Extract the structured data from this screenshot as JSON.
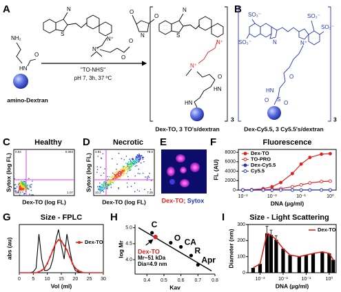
{
  "A": {
    "letter": "A",
    "reagent": "\"TO-NHS\"",
    "conditions": "pH 7, 3h, 37 ºC",
    "start": "amino-Dextran",
    "product": "Dex-TO, 3 TO's/dextran",
    "repeat": "3",
    "atoms": [
      "S",
      "N",
      "N⁺",
      "N⁺",
      "O",
      "O",
      "N",
      "O",
      "O",
      "NH₂",
      "HN",
      "O",
      "S",
      "N",
      "N⁺",
      "N⁺",
      "O",
      "HN",
      "HN"
    ]
  },
  "B": {
    "letter": "B",
    "product": "Dex-Cy5.5, 3 Cy5.5's/dextran",
    "repeat": "3",
    "atoms": [
      "SO₃⁻",
      "SO₃⁻",
      "SO₃⁻",
      "SO₃⁻",
      "N",
      "N⁺",
      "O",
      "HN",
      "O",
      "S",
      "O"
    ]
  },
  "C": {
    "letter": "C",
    "title": "Healthy",
    "xlabel": "Dex-TO (log FL)",
    "ylabel": "Sytox (log FL)",
    "quadrants": [
      0.54,
      0.083,
      98.3,
      1.07
    ]
  },
  "D": {
    "letter": "D",
    "title": "Necrotic",
    "xlabel": "Dex-TO (log FL)",
    "ylabel": "Sytox (log FL)",
    "quadrants": [
      3.81,
      78.6,
      10.2,
      7.35
    ]
  },
  "E": {
    "letter": "E",
    "caption": [
      "Dex-TO;",
      "Sytox"
    ]
  },
  "F": {
    "type": "line",
    "letter": "F",
    "title": "Fluorescence",
    "xlabel": "DNA (µg/ml)",
    "ylabel": "FL (AU)",
    "xscale": "log",
    "x": [
      0.001,
      0.002,
      0.005,
      0.01,
      0.02,
      0.05,
      0.1,
      0.2,
      0.5,
      1
    ],
    "xlim": [
      0.0007,
      1.6
    ],
    "ylim": [
      0,
      8600
    ],
    "xticks": [
      {
        "value": 0.001,
        "label": "10⁻³"
      },
      {
        "value": 0.01,
        "label": "10⁻²"
      },
      {
        "value": 0.1,
        "label": "10⁻¹"
      },
      {
        "value": 1,
        "label": "10⁰"
      }
    ],
    "yticks": [
      0,
      2000,
      4000,
      6000,
      8000
    ],
    "legend": "upper left",
    "series": [
      {
        "name": "Dex-TO",
        "color": "#e0201b",
        "marker": "filled",
        "values": [
          50,
          100,
          300,
          700,
          1600,
          3500,
          5500,
          6900,
          7600,
          7700
        ]
      },
      {
        "name": "TO-PRO",
        "color": "#e0201b",
        "marker": "open",
        "values": [
          20,
          40,
          80,
          150,
          300,
          700,
          1100,
          1500,
          1800,
          1900
        ]
      },
      {
        "name": "Dex-Cy5.5",
        "color": "#2233bb",
        "marker": "filled",
        "values": [
          10,
          10,
          15,
          15,
          20,
          20,
          25,
          25,
          30,
          30
        ]
      },
      {
        "name": "Cy5.5",
        "color": "#2233bb",
        "marker": "open",
        "values": [
          5,
          5,
          5,
          8,
          8,
          10,
          10,
          12,
          12,
          15
        ]
      }
    ]
  },
  "G": {
    "type": "line",
    "letter": "G",
    "title": "Size - FPLC",
    "xlabel": "Vol (ml)",
    "ylabel": "abs (au)",
    "x": [
      0,
      1,
      2,
      3,
      4,
      5,
      6,
      7,
      8,
      9,
      10,
      11,
      12,
      13,
      14,
      15,
      16,
      17,
      18,
      19,
      20,
      21,
      22,
      23,
      24,
      25,
      26,
      27,
      28,
      29,
      30
    ],
    "xlim": [
      0,
      30
    ],
    "ylim": [
      0,
      1
    ],
    "xticks": [
      0,
      5,
      10,
      15,
      20,
      25,
      30
    ],
    "legend": "upper right",
    "series": [
      {
        "color": "#000000",
        "values": [
          0,
          0,
          0,
          0,
          0,
          0.02,
          0.1,
          0.85,
          0.3,
          0.05,
          0.05,
          0.1,
          0.3,
          0.7,
          0.95,
          0.6,
          0.3,
          0.85,
          0.5,
          0.2,
          0.05,
          0.02,
          0,
          0,
          0,
          0,
          0,
          0,
          0,
          0,
          0
        ]
      },
      {
        "name": "Dex-TO",
        "color": "#e0201b",
        "values": [
          0,
          0,
          0,
          0,
          0,
          0,
          0,
          0.02,
          0.05,
          0.1,
          0.2,
          0.35,
          0.5,
          0.65,
          0.72,
          0.7,
          0.6,
          0.5,
          0.35,
          0.2,
          0.1,
          0.05,
          0.02,
          0,
          0,
          0,
          0,
          0,
          0,
          0,
          0
        ]
      }
    ]
  },
  "H": {
    "type": "scatter",
    "letter": "H",
    "xlabel": "Kav",
    "ylabel": "log Mr",
    "xlim": [
      0.33,
      0.8
    ],
    "ylim": [
      3.55,
      5.1
    ],
    "xticks": [
      0.4,
      0.5,
      0.6,
      0.7,
      0.8
    ],
    "yticks": [
      {
        "value": 4,
        "label": "4.0"
      },
      4.5,
      {
        "value": 5,
        "label": "5.0"
      }
    ],
    "points": [
      {
        "label": "C",
        "x": 0.43,
        "y": 4.84
      },
      {
        "label": "O",
        "x": 0.54,
        "y": 4.53
      },
      {
        "label": "CA",
        "x": 0.6,
        "y": 4.4
      },
      {
        "label": "R",
        "x": 0.66,
        "y": 4.13
      },
      {
        "label": "Apr",
        "x": 0.7,
        "y": 3.84
      }
    ],
    "highlight": {
      "x": 0.45,
      "y": 4.71,
      "color": "#e0201b"
    },
    "fit_x": [
      0.35,
      0.78
    ],
    "fit_y": [
      5.0,
      3.65
    ],
    "annotations": [
      "Dex-TO",
      "Mr~51 kDa",
      "Dia=4.9 nm"
    ]
  },
  "I": {
    "type": "bar",
    "letter": "I",
    "title": "Size - Light Scattering",
    "xlabel": "DNA (µg/ml)",
    "ylabel": "Diameter (nm)",
    "xscale": "log",
    "x": [
      0.0005,
      0.001,
      0.002,
      0.003,
      0.005,
      0.01,
      0.02,
      0.05,
      0.1,
      0.2,
      0.5,
      1,
      1.5
    ],
    "values": [
      30,
      55,
      245,
      235,
      205,
      150,
      110,
      100,
      110,
      120,
      130,
      120,
      80
    ],
    "errors": [
      null,
      null,
      45,
      30,
      25,
      null,
      null,
      null,
      null,
      null,
      null,
      null,
      null
    ],
    "xlim": [
      0.0003,
      2
    ],
    "ylim": [
      0,
      300
    ],
    "yticks": [
      0,
      100,
      200,
      300
    ],
    "xticks": [
      {
        "value": 0.001,
        "label": "10⁻³"
      },
      {
        "value": 0.01,
        "label": "10⁻²"
      },
      {
        "value": 0.1,
        "label": "10⁻¹"
      },
      {
        "value": 1,
        "label": "10⁰"
      }
    ],
    "bar_color": "#000000",
    "line": {
      "name": "Dex-TO",
      "color": "#e0201b"
    },
    "legend": "upper right"
  }
}
